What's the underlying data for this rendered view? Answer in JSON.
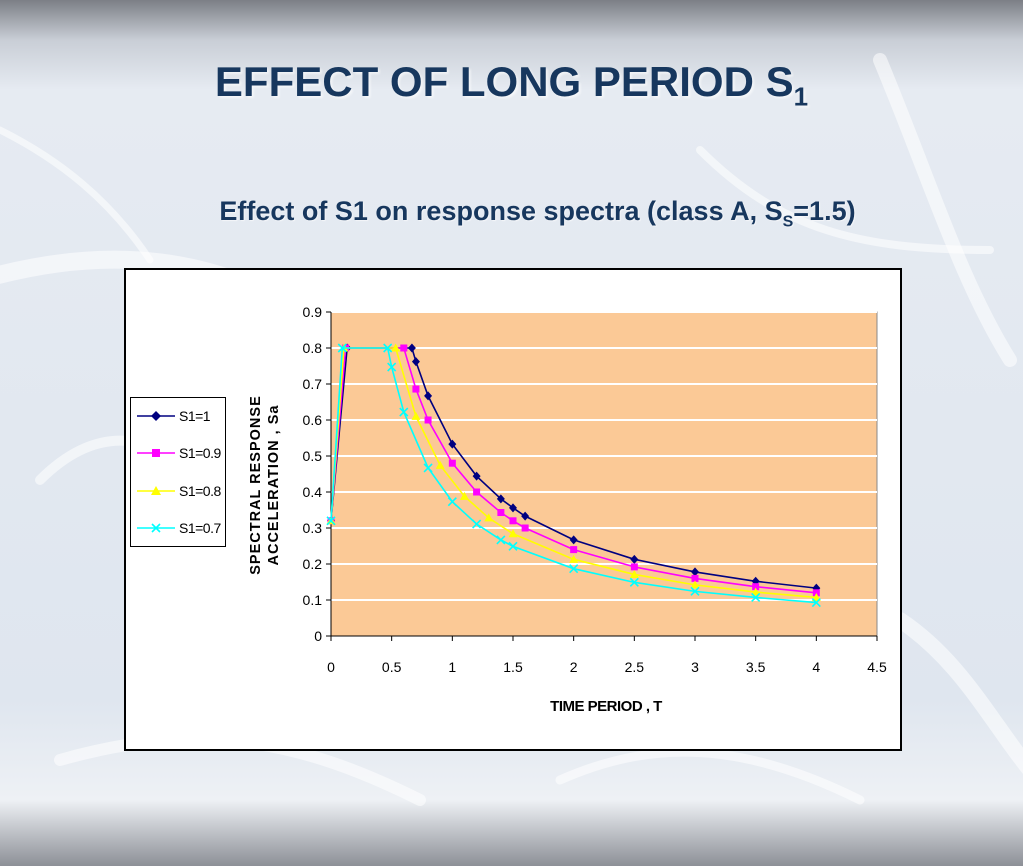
{
  "slide": {
    "title_main": "EFFECT OF LONG PERIOD S",
    "title_sub": "1"
  },
  "colors": {
    "title": "#17375e",
    "plot_background": "#fbc996",
    "gridline": "#ffffff"
  },
  "chart_data": {
    "type": "line",
    "title_main": "Effect of S1 on response spectra (class A, S",
    "title_sub": "S",
    "title_end": "=1.5)",
    "xlabel": "TIME PERIOD , T",
    "ylabel_line1": "SPECTRAL RESPONSE",
    "ylabel_line2": "ACCELERATION , Sa",
    "xlim": [
      0,
      4.5
    ],
    "ylim": [
      0,
      0.9
    ],
    "xticks": [
      "0",
      "0.5",
      "1",
      "1.5",
      "2",
      "2.5",
      "3",
      "3.5",
      "4",
      "4.5"
    ],
    "yticks": [
      "0",
      "0.1",
      "0.2",
      "0.3",
      "0.4",
      "0.5",
      "0.6",
      "0.7",
      "0.8",
      "0.9"
    ],
    "grid": "horizontal",
    "legend_position": "left",
    "series": [
      {
        "name": "S1=1",
        "color": "#000080",
        "marker": "diamond",
        "x": [
          0,
          0.133,
          0.667,
          0.7,
          0.8,
          1.0,
          1.2,
          1.4,
          1.5,
          1.6,
          2.0,
          2.5,
          3.0,
          3.5,
          4.0
        ],
        "y": [
          0.32,
          0.8,
          0.8,
          0.762,
          0.667,
          0.533,
          0.444,
          0.381,
          0.356,
          0.333,
          0.267,
          0.213,
          0.178,
          0.152,
          0.133
        ]
      },
      {
        "name": "S1=0.9",
        "color": "#ff00ff",
        "marker": "square",
        "x": [
          0,
          0.12,
          0.6,
          0.7,
          0.8,
          1.0,
          1.2,
          1.4,
          1.5,
          1.6,
          2.0,
          2.5,
          3.0,
          3.5,
          4.0
        ],
        "y": [
          0.32,
          0.8,
          0.8,
          0.686,
          0.6,
          0.48,
          0.4,
          0.343,
          0.32,
          0.3,
          0.24,
          0.192,
          0.16,
          0.137,
          0.12
        ]
      },
      {
        "name": "S1=0.8",
        "color": "#ffff00",
        "marker": "triangle",
        "x": [
          0,
          0.107,
          0.533,
          0.7,
          0.9,
          1.1,
          1.3,
          1.5,
          2.0,
          2.5,
          3.0,
          3.5,
          4.0
        ],
        "y": [
          0.32,
          0.8,
          0.8,
          0.61,
          0.474,
          0.388,
          0.328,
          0.284,
          0.213,
          0.171,
          0.142,
          0.122,
          0.107
        ]
      },
      {
        "name": "S1=0.7",
        "color": "#00ffff",
        "marker": "x",
        "x": [
          0,
          0.093,
          0.467,
          0.5,
          0.6,
          0.8,
          1.0,
          1.2,
          1.4,
          1.5,
          2.0,
          2.5,
          3.0,
          3.5,
          4.0
        ],
        "y": [
          0.32,
          0.8,
          0.8,
          0.747,
          0.622,
          0.467,
          0.373,
          0.311,
          0.267,
          0.249,
          0.187,
          0.149,
          0.124,
          0.107,
          0.093
        ]
      }
    ]
  }
}
